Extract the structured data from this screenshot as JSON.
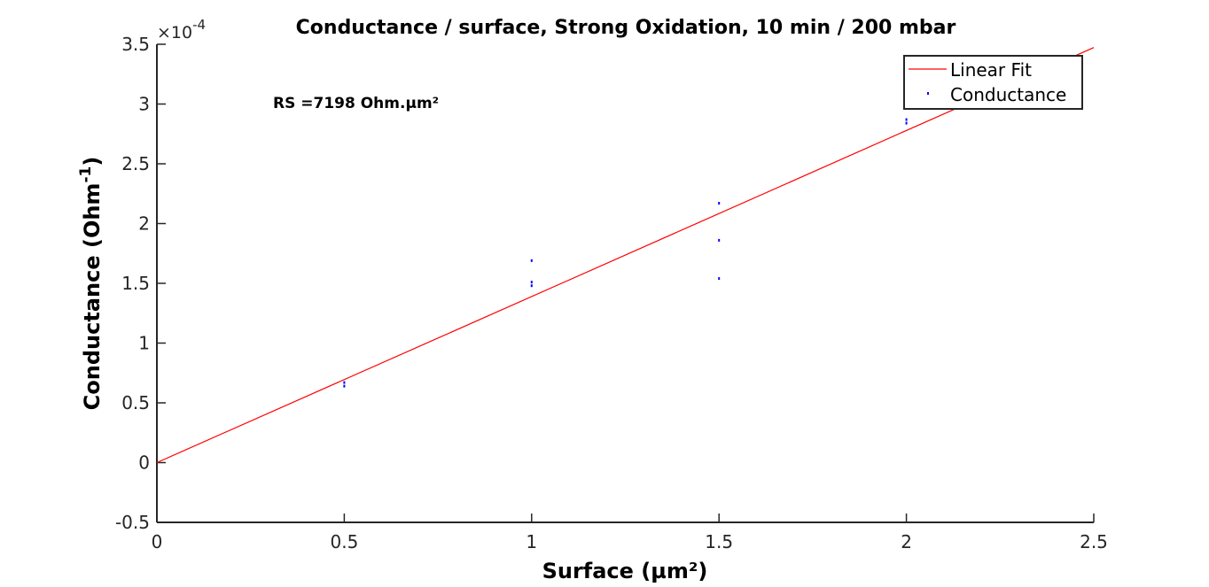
{
  "chart_data": {
    "type": "scatter",
    "title": "Conductance / surface, Strong Oxidation, 10 min / 200 mbar",
    "xlabel": "Surface (µm²)",
    "ylabel_main": "Conductance (Ohm",
    "ylabel_sup": "-1",
    "ylabel_close": ")",
    "y_multiplier_base": "×10",
    "y_multiplier_exp": "-4",
    "xlim": [
      0,
      2.5
    ],
    "ylim": [
      -0.5,
      3.5
    ],
    "x_ticks": [
      0,
      0.5,
      1,
      1.5,
      2,
      2.5
    ],
    "x_tick_labels": [
      "0",
      "0.5",
      "1",
      "1.5",
      "2",
      "2.5"
    ],
    "y_ticks": [
      -0.5,
      0,
      0.5,
      1,
      1.5,
      2,
      2.5,
      3,
      3.5
    ],
    "y_tick_labels": [
      "-0.5",
      "0",
      "0.5",
      "1",
      "1.5",
      "2",
      "2.5",
      "3",
      "3.5"
    ],
    "annotation": "RS =7198 Ohm.µm²",
    "series": [
      {
        "name": "Linear Fit",
        "kind": "line",
        "color": "#ff0000",
        "x": [
          0,
          2.5
        ],
        "y": [
          0,
          3.473
        ]
      },
      {
        "name": "Conductance",
        "kind": "scatter",
        "color": "#0000ff",
        "points": [
          {
            "x": 0.5,
            "y": 0.64
          },
          {
            "x": 0.5,
            "y": 0.67
          },
          {
            "x": 1.0,
            "y": 1.69
          },
          {
            "x": 1.0,
            "y": 1.48
          },
          {
            "x": 1.0,
            "y": 1.51
          },
          {
            "x": 1.5,
            "y": 2.17
          },
          {
            "x": 1.5,
            "y": 1.86
          },
          {
            "x": 1.5,
            "y": 1.54
          },
          {
            "x": 2.0,
            "y": 2.84
          },
          {
            "x": 2.0,
            "y": 2.87
          }
        ]
      }
    ],
    "legend": {
      "placement": "top-right",
      "entries": [
        "Linear Fit",
        "Conductance"
      ]
    }
  }
}
